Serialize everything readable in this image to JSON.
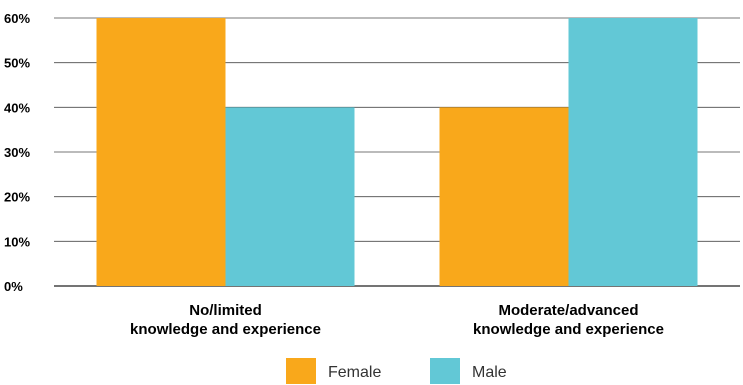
{
  "chart_data": {
    "type": "bar",
    "categories": [
      [
        "No/limited",
        "knowledge and experience"
      ],
      [
        "Moderate/advanced",
        "knowledge and experience"
      ]
    ],
    "series": [
      {
        "name": "Female",
        "values": [
          60,
          40
        ],
        "color": "#F9A81B"
      },
      {
        "name": "Male",
        "values": [
          40,
          60
        ],
        "color": "#62C8D6"
      }
    ],
    "y_ticks": [
      "0%",
      "10%",
      "20%",
      "30%",
      "40%",
      "50%",
      "60%"
    ],
    "ylim": [
      0,
      60
    ],
    "grid": true,
    "legend_position": "bottom-center"
  }
}
